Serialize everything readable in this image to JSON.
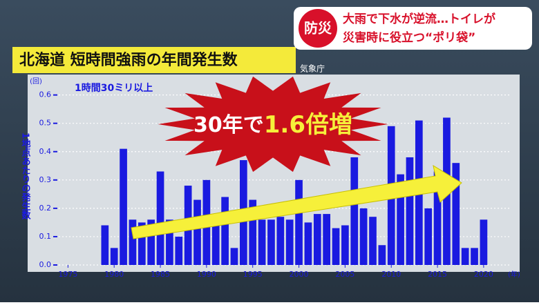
{
  "banner": {
    "badge": "防災",
    "line1": "大雨で下水が逆流…トイレが",
    "line2": "災害時に役立つ“ポリ袋”"
  },
  "chart_data": {
    "type": "bar",
    "title": "北海道 短時間強雨の年間発生数",
    "source": "気象庁",
    "subtitle": "1時間30ミリ以上",
    "y_label": "1地点あたりの発生数",
    "y_unit": "(回)",
    "x_unit": "(年)",
    "annotation": {
      "prefix": "30年で",
      "highlight": "1.6倍増"
    },
    "x": [
      1979,
      1980,
      1981,
      1982,
      1983,
      1984,
      1985,
      1986,
      1987,
      1988,
      1989,
      1990,
      1991,
      1992,
      1993,
      1994,
      1995,
      1996,
      1997,
      1998,
      1999,
      2000,
      2001,
      2002,
      2003,
      2004,
      2005,
      2006,
      2007,
      2008,
      2009,
      2010,
      2011,
      2012,
      2013,
      2014,
      2015,
      2016,
      2017,
      2018,
      2019,
      2020
    ],
    "values": [
      0.14,
      0.06,
      0.41,
      0.16,
      0.15,
      0.16,
      0.33,
      0.16,
      0.1,
      0.28,
      0.23,
      0.3,
      0.15,
      0.24,
      0.06,
      0.37,
      0.23,
      0.16,
      0.16,
      0.17,
      0.16,
      0.3,
      0.15,
      0.18,
      0.18,
      0.13,
      0.14,
      0.38,
      0.2,
      0.17,
      0.07,
      0.49,
      0.32,
      0.38,
      0.51,
      0.2,
      0.33,
      0.52,
      0.36,
      0.06,
      0.06,
      0.16
    ],
    "color": "#1a1ae0",
    "xlim": [
      1974,
      2023
    ],
    "xticks": [
      1975,
      1980,
      1985,
      1990,
      1995,
      2000,
      2005,
      2010,
      2015,
      2020
    ],
    "ylim": [
      0,
      0.66
    ],
    "yticks": [
      {
        "value": 0,
        "label": "0.0"
      },
      0.1,
      0.2,
      0.3,
      0.4,
      0.5,
      0.6
    ],
    "grid": true
  }
}
